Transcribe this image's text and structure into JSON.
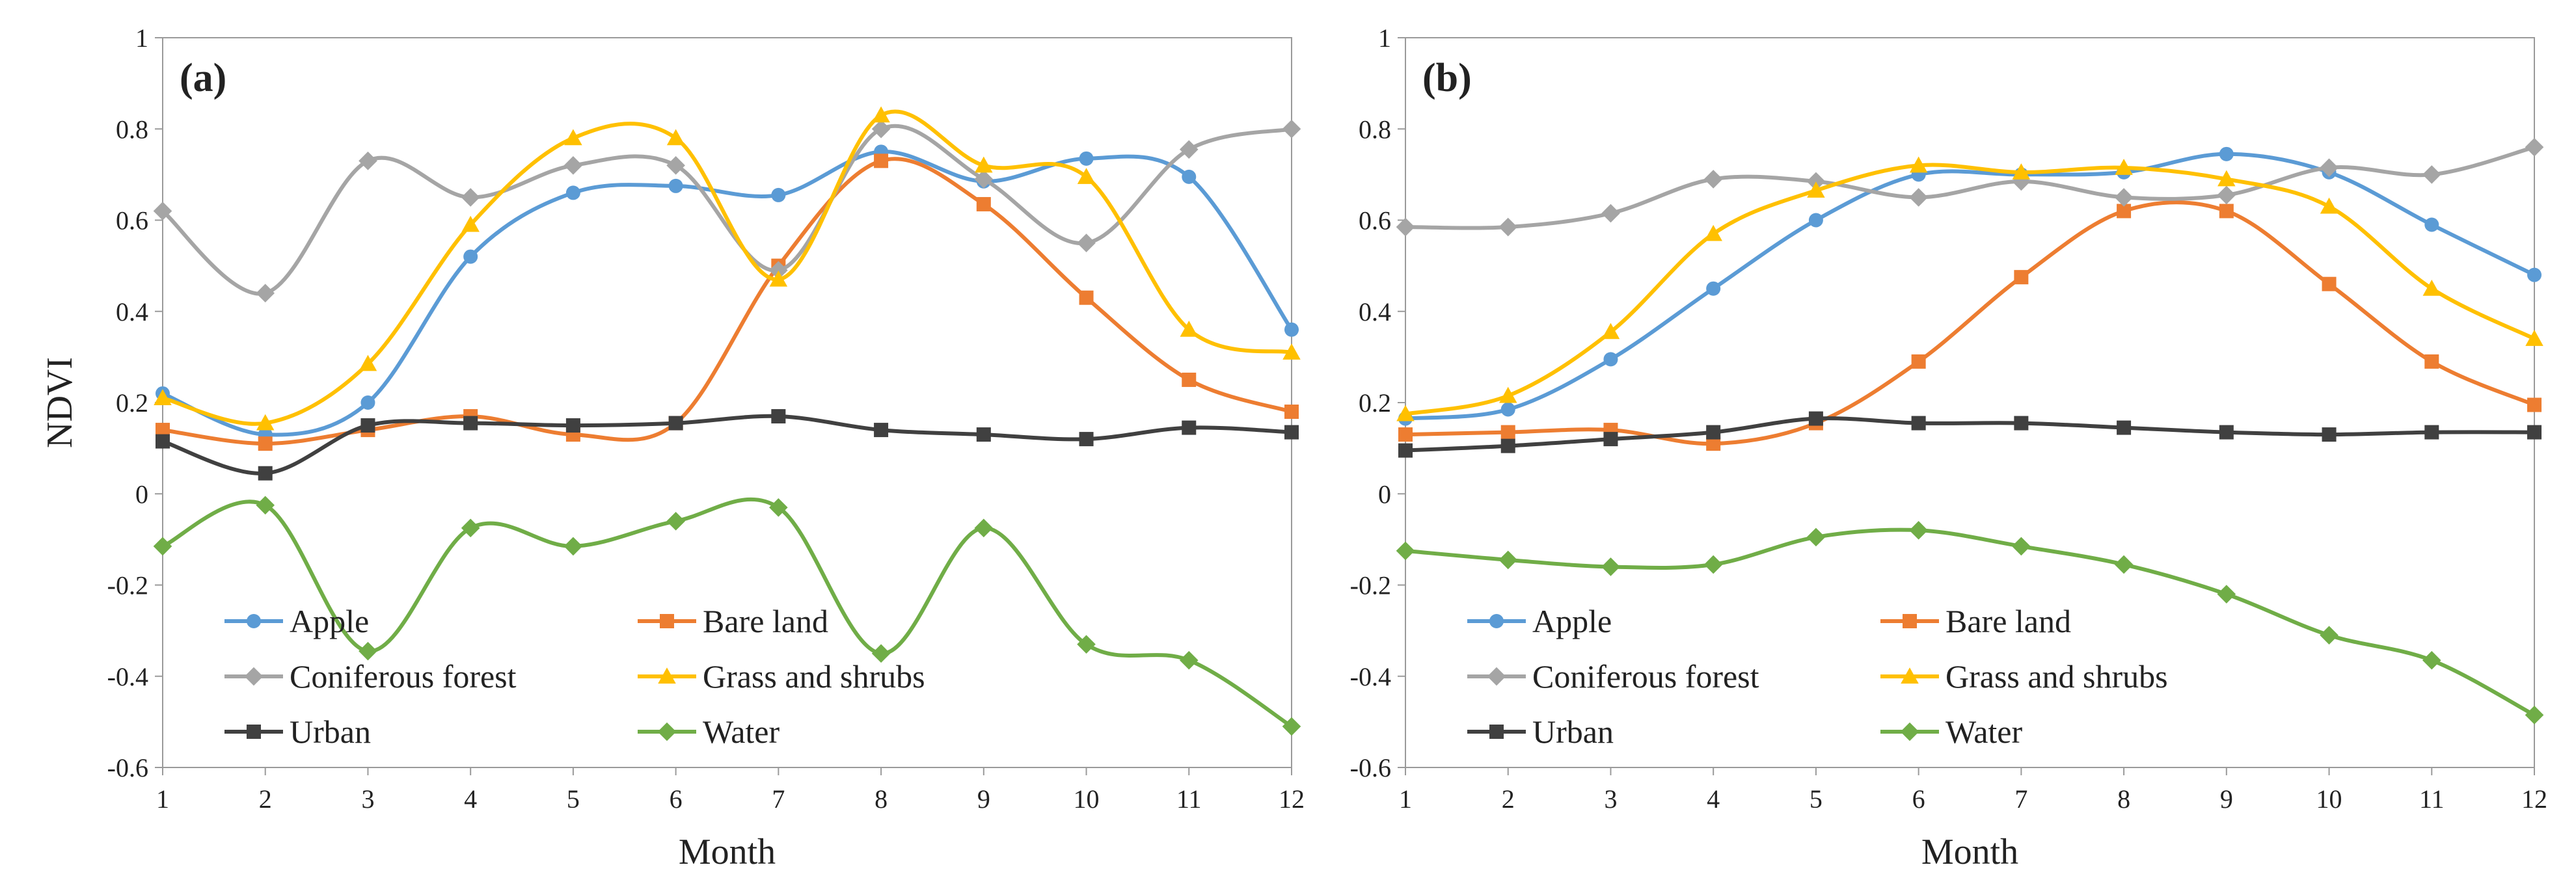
{
  "chart_data": [
    {
      "type": "line",
      "panel_label": "(a)",
      "xlabel": "Month",
      "ylabel": "NDVI",
      "x": [
        1,
        2,
        3,
        4,
        5,
        6,
        7,
        8,
        9,
        10,
        11,
        12
      ],
      "xticks": [
        "1",
        "2",
        "3",
        "4",
        "5",
        "6",
        "7",
        "8",
        "9",
        "10",
        "11",
        "12"
      ],
      "ylim": [
        -0.6,
        1
      ],
      "yticks": [
        "-0.6",
        "-0.4",
        "-0.2",
        "0",
        "0.2",
        "0.4",
        "0.6",
        "0.8",
        "1"
      ],
      "legend_position": "bottom-left",
      "series": [
        {
          "name": "Apple",
          "color": "#5B9BD5",
          "marker": "circle",
          "values": [
            0.22,
            0.13,
            0.2,
            0.52,
            0.66,
            0.675,
            0.655,
            0.75,
            0.685,
            0.735,
            0.695,
            0.36
          ]
        },
        {
          "name": "Bare land",
          "color": "#ED7D31",
          "marker": "square",
          "values": [
            0.14,
            0.11,
            0.14,
            0.17,
            0.13,
            0.155,
            0.5,
            0.73,
            0.635,
            0.43,
            0.25,
            0.18
          ]
        },
        {
          "name": "Coniferous forest",
          "color": "#A5A5A5",
          "marker": "diamond",
          "values": [
            0.62,
            0.44,
            0.73,
            0.65,
            0.72,
            0.72,
            0.49,
            0.8,
            0.69,
            0.55,
            0.755,
            0.8
          ]
        },
        {
          "name": "Grass and shrubs",
          "color": "#FFC000",
          "marker": "triangle",
          "values": [
            0.21,
            0.155,
            0.285,
            0.59,
            0.78,
            0.78,
            0.47,
            0.83,
            0.72,
            0.695,
            0.36,
            0.31
          ]
        },
        {
          "name": "Urban",
          "color": "#404040",
          "marker": "square",
          "values": [
            0.115,
            0.045,
            0.15,
            0.155,
            0.15,
            0.155,
            0.17,
            0.14,
            0.13,
            0.12,
            0.145,
            0.135
          ]
        },
        {
          "name": "Water",
          "color": "#70AD47",
          "marker": "diamond",
          "values": [
            -0.115,
            -0.025,
            -0.345,
            -0.075,
            -0.115,
            -0.06,
            -0.03,
            -0.35,
            -0.075,
            -0.33,
            -0.365,
            -0.51
          ]
        }
      ]
    },
    {
      "type": "line",
      "panel_label": "(b)",
      "xlabel": "Month",
      "ylabel": "",
      "x": [
        1,
        2,
        3,
        4,
        5,
        6,
        7,
        8,
        9,
        10,
        11,
        12
      ],
      "xticks": [
        "1",
        "2",
        "3",
        "4",
        "5",
        "6",
        "7",
        "8",
        "9",
        "10",
        "11",
        "12"
      ],
      "ylim": [
        -0.6,
        1
      ],
      "yticks": [
        "-0.6",
        "-0.4",
        "-0.2",
        "0",
        "0.2",
        "0.4",
        "0.6",
        "0.8",
        "1"
      ],
      "legend_position": "bottom-left",
      "series": [
        {
          "name": "Apple",
          "color": "#5B9BD5",
          "marker": "circle",
          "values": [
            0.165,
            0.185,
            0.295,
            0.45,
            0.6,
            0.7,
            0.7,
            0.705,
            0.745,
            0.705,
            0.59,
            0.48
          ]
        },
        {
          "name": "Bare land",
          "color": "#ED7D31",
          "marker": "square",
          "values": [
            0.13,
            0.135,
            0.14,
            0.11,
            0.155,
            0.29,
            0.475,
            0.62,
            0.62,
            0.46,
            0.29,
            0.195
          ]
        },
        {
          "name": "Coniferous forest",
          "color": "#A5A5A5",
          "marker": "diamond",
          "values": [
            0.585,
            0.585,
            0.615,
            0.69,
            0.685,
            0.65,
            0.685,
            0.65,
            0.655,
            0.715,
            0.7,
            0.76
          ]
        },
        {
          "name": "Grass and shrubs",
          "color": "#FFC000",
          "marker": "triangle",
          "values": [
            0.175,
            0.215,
            0.355,
            0.57,
            0.665,
            0.72,
            0.705,
            0.715,
            0.69,
            0.63,
            0.45,
            0.34
          ]
        },
        {
          "name": "Urban",
          "color": "#404040",
          "marker": "square",
          "values": [
            0.095,
            0.105,
            0.12,
            0.135,
            0.165,
            0.155,
            0.155,
            0.145,
            0.135,
            0.13,
            0.135,
            0.135
          ]
        },
        {
          "name": "Water",
          "color": "#70AD47",
          "marker": "diamond",
          "values": [
            -0.125,
            -0.145,
            -0.16,
            -0.155,
            -0.095,
            -0.08,
            -0.115,
            -0.155,
            -0.22,
            -0.31,
            -0.365,
            -0.485
          ]
        }
      ]
    }
  ]
}
